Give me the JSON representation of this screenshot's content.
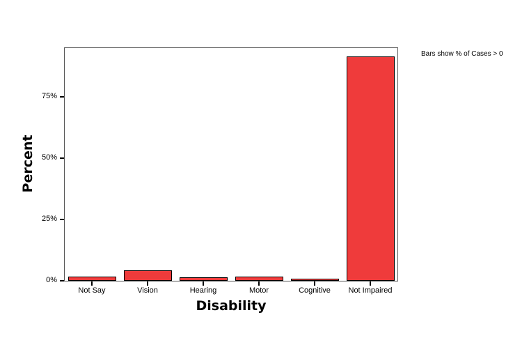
{
  "chart_data": {
    "type": "bar",
    "title": "",
    "xlabel": "Disability",
    "ylabel": "Percent",
    "categories": [
      "Not Say",
      "Vision",
      "Hearing",
      "Motor",
      "Cognitive",
      "Not Impaired"
    ],
    "values": [
      1.6,
      4.2,
      1.3,
      1.8,
      0.7,
      91.4
    ],
    "yticks": [
      "0%",
      "25%",
      "50%",
      "75%"
    ],
    "ylim": [
      0,
      95
    ],
    "grid": false,
    "bar_color": "#ef3b3b",
    "annotation": "Bars show % of Cases > 0"
  },
  "labels": {
    "x_title": "Disability",
    "y_title": "Percent",
    "note": "Bars show % of Cases > 0",
    "yticks": [
      "0%",
      "25%",
      "50%",
      "75%"
    ],
    "categories": [
      "Not Say",
      "Vision",
      "Hearing",
      "Motor",
      "Cognitive",
      "Not Impaired"
    ]
  }
}
